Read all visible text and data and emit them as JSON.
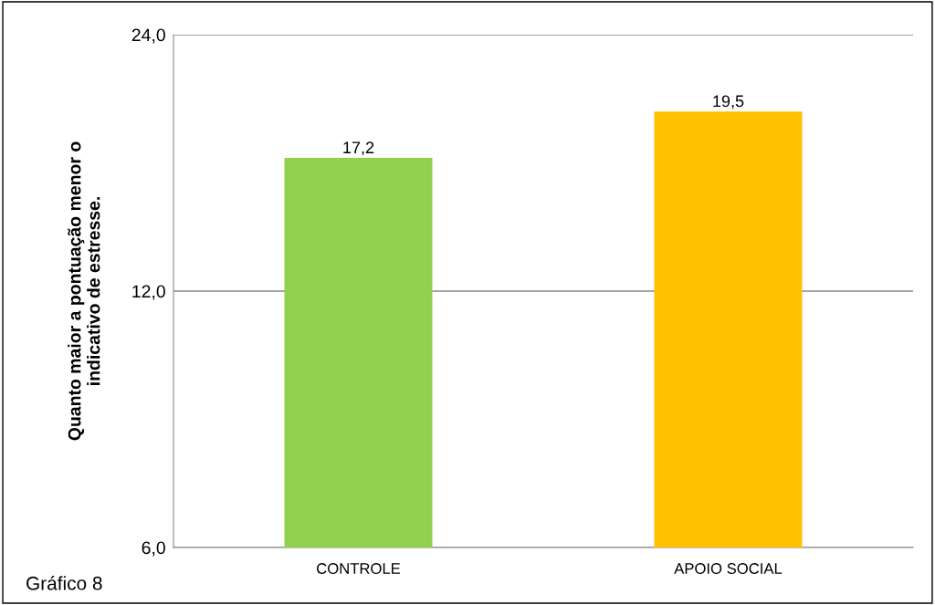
{
  "chart_data": {
    "type": "bar",
    "categories": [
      "CONTROLE",
      "APOIO SOCIAL"
    ],
    "values": [
      17.2,
      19.5
    ],
    "colors": [
      "#92d050",
      "#ffc000"
    ],
    "value_labels": [
      "17,2",
      "19,5"
    ],
    "ylabel": "Quanto maior a pontuação menor o\nindicativo de estresse.",
    "log": true,
    "ylim": [
      6,
      24
    ],
    "yticks": [
      {
        "value": 6,
        "label": "6,0"
      },
      {
        "value": 12,
        "label": "12,0"
      },
      {
        "value": 24,
        "label": "24,0"
      }
    ],
    "grid": "y",
    "annotations": [
      "Gráfico 8"
    ]
  }
}
